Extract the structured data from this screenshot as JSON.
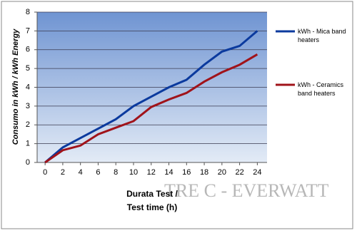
{
  "chart_data": {
    "type": "line",
    "x_label": [
      "Durata Test /",
      "Test time (h)"
    ],
    "y_label": "Consumo in kWh  / kWh Energy",
    "x": [
      0,
      2,
      4,
      6,
      8,
      10,
      12,
      14,
      16,
      18,
      20,
      22,
      24
    ],
    "series": [
      {
        "name": "kWh - Mica band heaters",
        "color": "#0b3a9e",
        "values": [
          0,
          0.8,
          1.3,
          1.8,
          2.3,
          3.0,
          3.5,
          4.0,
          4.4,
          5.2,
          5.9,
          6.2,
          7.0
        ]
      },
      {
        "name": "kWh - Ceramics band heaters",
        "color": "#a0131a",
        "values": [
          0,
          0.65,
          0.9,
          1.5,
          1.85,
          2.2,
          2.95,
          3.35,
          3.7,
          4.3,
          4.8,
          5.2,
          5.75
        ]
      }
    ],
    "xlim": [
      -0.9,
      25.1
    ],
    "xticks": [
      0,
      2,
      4,
      6,
      8,
      10,
      12,
      14,
      16,
      18,
      20,
      22,
      24
    ],
    "ylim": [
      0,
      8
    ],
    "yticks": [
      0,
      1,
      2,
      3,
      4,
      5,
      6,
      7,
      8
    ],
    "grid": true,
    "legend": "right",
    "watermark": "TRE C - EVERWATT"
  }
}
